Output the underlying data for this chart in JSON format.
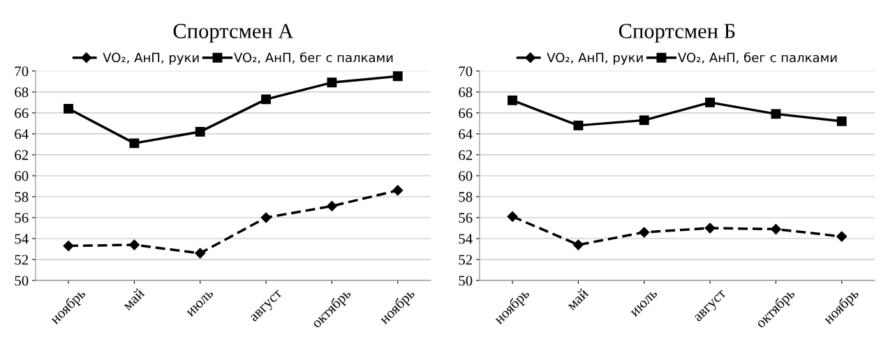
{
  "chart_data": [
    {
      "type": "line",
      "title": "Спортсмен А",
      "categories": [
        "ноябрь",
        "май",
        "июль",
        "август",
        "октябрь",
        "ноябрь"
      ],
      "ylim": [
        50,
        70
      ],
      "yticks": [
        50,
        52,
        54,
        56,
        58,
        60,
        62,
        64,
        66,
        68,
        70
      ],
      "grid": "y",
      "legend": "top",
      "series": [
        {
          "name": "VO₂, АнП, руки",
          "color": "#000000",
          "marker": "diamond",
          "line_style": "dashed",
          "values": [
            53.3,
            53.4,
            52.6,
            56.0,
            57.1,
            58.6
          ]
        },
        {
          "name": "VO₂, АнП, бег с палками",
          "color": "#000000",
          "marker": "square",
          "line_style": "solid",
          "values": [
            66.4,
            63.1,
            64.2,
            67.3,
            68.9,
            69.5
          ]
        }
      ]
    },
    {
      "type": "line",
      "title": "Спортсмен Б",
      "categories": [
        "ноябрь",
        "май",
        "июль",
        "август",
        "октябрь",
        "ноябрь"
      ],
      "ylim": [
        50,
        70
      ],
      "yticks": [
        50,
        52,
        54,
        56,
        58,
        60,
        62,
        64,
        66,
        68,
        70
      ],
      "grid": "y",
      "legend": "top",
      "series": [
        {
          "name": "VO₂, АнП, руки",
          "color": "#000000",
          "marker": "diamond",
          "line_style": "dashed",
          "values": [
            56.1,
            53.4,
            54.6,
            55.0,
            54.9,
            54.2
          ]
        },
        {
          "name": "VO₂, АнП, бег с палками",
          "color": "#000000",
          "marker": "square",
          "line_style": "solid",
          "values": [
            67.2,
            64.8,
            65.3,
            67.0,
            65.9,
            65.2
          ]
        }
      ]
    }
  ]
}
